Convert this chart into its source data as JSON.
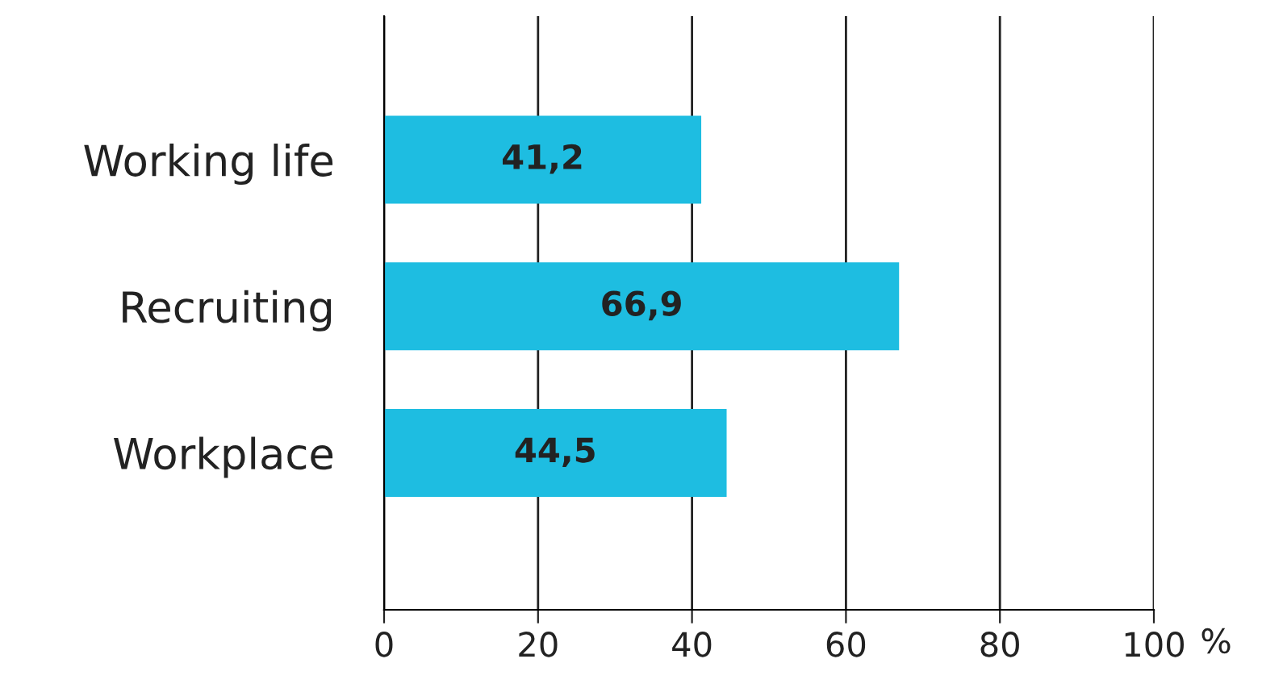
{
  "chart_data": {
    "type": "bar",
    "orientation": "horizontal",
    "categories": [
      "Working life",
      "Recruiting",
      "Workplace"
    ],
    "values": [
      41.2,
      66.9,
      44.5
    ],
    "value_labels": [
      "41,2",
      "66,9",
      "44,5"
    ],
    "color": "#1ebde1",
    "xlim": [
      0,
      100
    ],
    "xticks": [
      0,
      20,
      40,
      60,
      80,
      100
    ],
    "xlabel": "%",
    "grid": "x"
  }
}
